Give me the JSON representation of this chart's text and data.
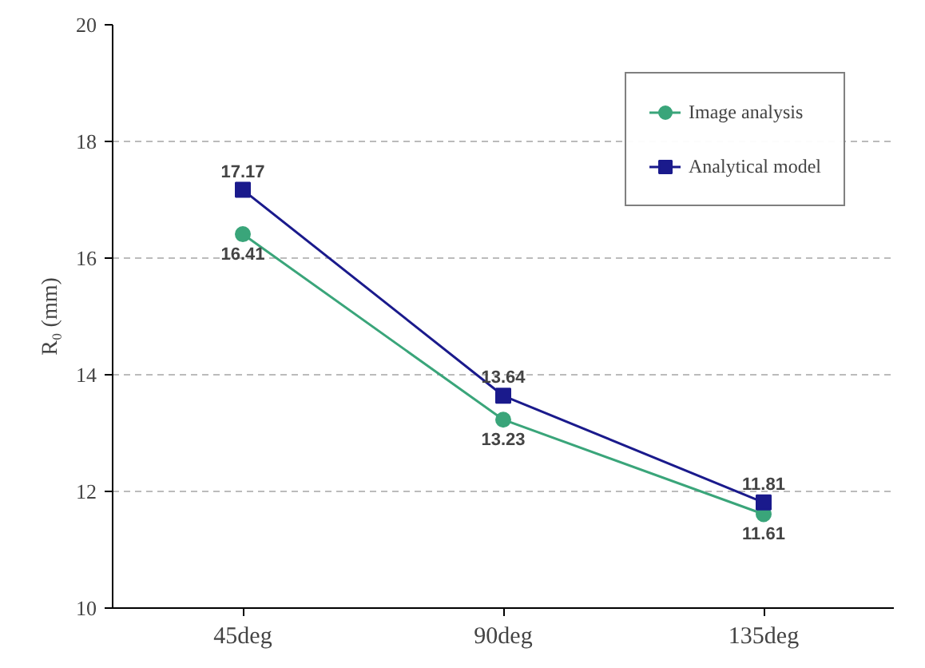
{
  "chart_data": {
    "type": "line",
    "ylabel": "R₀ (mm)",
    "categories": [
      "45deg",
      "90deg",
      "135deg"
    ],
    "series": [
      {
        "name": "Image analysis",
        "color": "#3aa57a",
        "values": [
          16.41,
          13.23,
          11.61
        ],
        "marker": "circle"
      },
      {
        "name": "Analytical model",
        "color": "#1a1a8c",
        "values": [
          17.17,
          13.64,
          11.81
        ],
        "marker": "square"
      }
    ],
    "ylim": [
      10,
      20
    ],
    "yticks": [
      10,
      12,
      14,
      16,
      18,
      20
    ],
    "grid": "y",
    "legend": "top right",
    "data_labels": true,
    "line_style": "solid"
  }
}
